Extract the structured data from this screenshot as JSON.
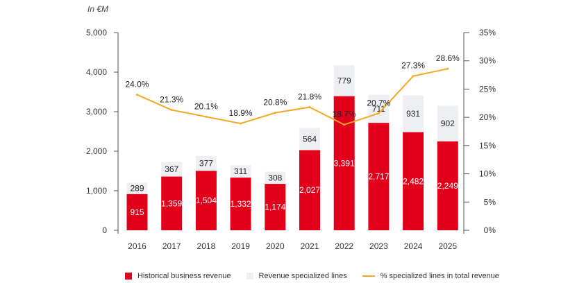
{
  "chart_data": {
    "type": "bar",
    "unit_label": "In €M",
    "categories": [
      "2016",
      "2017",
      "2018",
      "2019",
      "2020",
      "2021",
      "2022",
      "2023",
      "2024",
      "2025"
    ],
    "series": [
      {
        "name": "Historical business revenue",
        "kind": "bar",
        "color": "#e2001a",
        "values": [
          915,
          1359,
          1504,
          1332,
          1174,
          2027,
          3391,
          2717,
          2482,
          2249
        ],
        "labels": [
          "915",
          "1,359",
          "1,504",
          "1,332",
          "1,174",
          "2,027",
          "3,391",
          "2,717",
          "2,482",
          "2,249"
        ]
      },
      {
        "name": "Revenue specialized lines",
        "kind": "bar-stacked",
        "color": "#eeeff3",
        "values": [
          289,
          367,
          377,
          311,
          308,
          564,
          779,
          711,
          931,
          902
        ],
        "labels": [
          "289",
          "367",
          "377",
          "311",
          "308",
          "564",
          "779",
          "711",
          "931",
          "902"
        ]
      },
      {
        "name": "% specialized lines in total revenue",
        "kind": "line",
        "axis": "right",
        "color": "#f5a623",
        "values": [
          24.0,
          21.3,
          20.1,
          18.9,
          20.8,
          21.8,
          18.7,
          20.7,
          27.3,
          28.6
        ],
        "labels": [
          "24.0%",
          "21.3%",
          "20.1%",
          "18.9%",
          "20.8%",
          "21.8%",
          "18.7%",
          "20.7%",
          "27.3%",
          "28.6%"
        ]
      }
    ],
    "y_left": {
      "ylim": [
        0,
        5000
      ],
      "ticks": [
        "0",
        "1,000",
        "2,000",
        "3,000",
        "4,000",
        "5,000"
      ],
      "tick_values": [
        0,
        1000,
        2000,
        3000,
        4000,
        5000
      ]
    },
    "y_right": {
      "ylim": [
        0,
        35
      ],
      "ticks": [
        "0%",
        "5%",
        "10%",
        "15%",
        "20%",
        "25%",
        "30%",
        "35%"
      ],
      "tick_values": [
        0,
        5,
        10,
        15,
        20,
        25,
        30,
        35
      ]
    },
    "legend_position": "bottom",
    "grid": false
  }
}
